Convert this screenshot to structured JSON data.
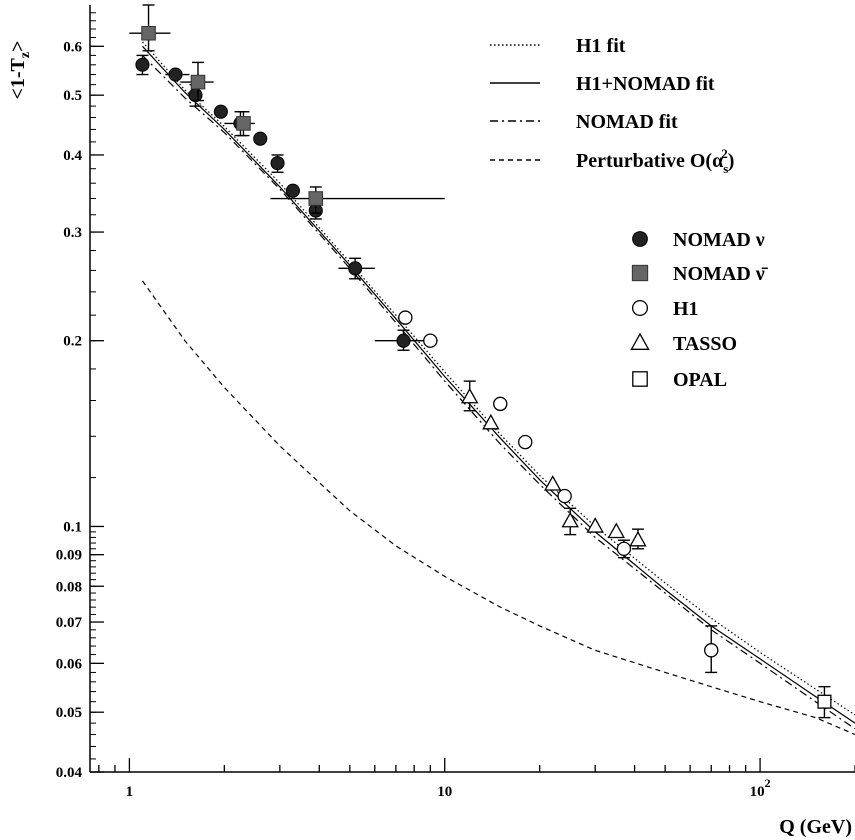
{
  "chart_data": {
    "type": "scatter",
    "xscale": "log",
    "yscale": "log",
    "xlim": [
      0.75,
      200
    ],
    "ylim": [
      0.04,
      0.7
    ],
    "xlabel": "Q (GeV)",
    "ylabel": "<1-T_z>",
    "x_tick_labels": [
      "1",
      "10",
      "10^2"
    ],
    "y_tick_labels": [
      "0.04",
      "0.05",
      "0.06",
      "0.07",
      "0.08",
      "0.09",
      "0.1",
      "0.2",
      "0.3",
      "0.4",
      "0.5",
      "0.6"
    ],
    "grid": false,
    "legend_position": "top-right",
    "curves": [
      {
        "name": "H1 fit",
        "style": "dotted",
        "points": [
          [
            1.1,
            0.61
          ],
          [
            1.5,
            0.51
          ],
          [
            2,
            0.445
          ],
          [
            3,
            0.36
          ],
          [
            5,
            0.268
          ],
          [
            7,
            0.22
          ],
          [
            10,
            0.178
          ],
          [
            15,
            0.141
          ],
          [
            20,
            0.121
          ],
          [
            30,
            0.1
          ],
          [
            50,
            0.081
          ],
          [
            70,
            0.071
          ],
          [
            100,
            0.0625
          ],
          [
            150,
            0.0545
          ],
          [
            200,
            0.0495
          ]
        ]
      },
      {
        "name": "H1+NOMAD fit",
        "style": "solid",
        "points": [
          [
            1.1,
            0.6
          ],
          [
            1.5,
            0.505
          ],
          [
            2,
            0.44
          ],
          [
            3,
            0.355
          ],
          [
            5,
            0.265
          ],
          [
            7,
            0.217
          ],
          [
            10,
            0.175
          ],
          [
            15,
            0.139
          ],
          [
            20,
            0.119
          ],
          [
            30,
            0.098
          ],
          [
            50,
            0.079
          ],
          [
            70,
            0.069
          ],
          [
            100,
            0.061
          ],
          [
            150,
            0.053
          ],
          [
            200,
            0.048
          ]
        ]
      },
      {
        "name": "NOMAD fit",
        "style": "dashdot",
        "points": [
          [
            1.1,
            0.58
          ],
          [
            1.5,
            0.495
          ],
          [
            2,
            0.435
          ],
          [
            3,
            0.352
          ],
          [
            5,
            0.262
          ],
          [
            7,
            0.214
          ],
          [
            10,
            0.172
          ],
          [
            15,
            0.136
          ],
          [
            20,
            0.117
          ],
          [
            30,
            0.096
          ],
          [
            50,
            0.078
          ],
          [
            70,
            0.068
          ],
          [
            100,
            0.06
          ],
          [
            150,
            0.052
          ],
          [
            200,
            0.047
          ]
        ]
      },
      {
        "name": "Perturbative O(α_s^2)",
        "style": "dashed",
        "points": [
          [
            1.1,
            0.25
          ],
          [
            1.5,
            0.2
          ],
          [
            2,
            0.168
          ],
          [
            3,
            0.135
          ],
          [
            5,
            0.106
          ],
          [
            7,
            0.093
          ],
          [
            10,
            0.083
          ],
          [
            15,
            0.074
          ],
          [
            20,
            0.069
          ],
          [
            30,
            0.063
          ],
          [
            50,
            0.058
          ],
          [
            70,
            0.055
          ],
          [
            100,
            0.052
          ],
          [
            150,
            0.049
          ],
          [
            200,
            0.046
          ]
        ]
      }
    ],
    "series": [
      {
        "name": "NOMAD ν",
        "marker": "filled-circle",
        "points": [
          {
            "x": 1.1,
            "y": 0.56,
            "yerr": [
              0.54,
              0.58
            ]
          },
          {
            "x": 1.4,
            "y": 0.54,
            "xerr": [
              1.3,
              1.55
            ]
          },
          {
            "x": 1.62,
            "y": 0.5,
            "yerr": [
              0.48,
              0.52
            ]
          },
          {
            "x": 1.95,
            "y": 0.47
          },
          {
            "x": 2.25,
            "y": 0.45,
            "xerr": [
              2.0,
              2.5
            ],
            "yerr": [
              0.43,
              0.47
            ]
          },
          {
            "x": 2.6,
            "y": 0.425
          },
          {
            "x": 2.95,
            "y": 0.388,
            "yerr": [
              0.375,
              0.4
            ]
          },
          {
            "x": 3.3,
            "y": 0.35
          },
          {
            "x": 3.9,
            "y": 0.325,
            "yerr": [
              0.315,
              0.335
            ]
          },
          {
            "x": 5.2,
            "y": 0.262,
            "xerr": [
              4.6,
              6.0
            ],
            "yerr": [
              0.252,
              0.272
            ]
          },
          {
            "x": 7.4,
            "y": 0.2,
            "xerr": [
              6.0,
              9.5
            ],
            "yerr": [
              0.193,
              0.208
            ]
          }
        ]
      },
      {
        "name": "NOMAD ν̄",
        "marker": "filled-square",
        "points": [
          {
            "x": 1.15,
            "y": 0.63,
            "xerr": [
              1.0,
              1.35
            ],
            "yerr": [
              0.59,
              0.7
            ]
          },
          {
            "x": 1.65,
            "y": 0.525,
            "xerr": [
              1.45,
              1.85
            ],
            "yerr": [
              0.49,
              0.565
            ]
          },
          {
            "x": 2.3,
            "y": 0.45,
            "yerr": [
              0.43,
              0.47
            ]
          },
          {
            "x": 3.9,
            "y": 0.34,
            "xerr": [
              2.8,
              10.0
            ],
            "yerr": [
              0.322,
              0.355
            ]
          }
        ]
      },
      {
        "name": "H1",
        "marker": "open-circle",
        "points": [
          {
            "x": 7.5,
            "y": 0.218
          },
          {
            "x": 9.0,
            "y": 0.2
          },
          {
            "x": 15.0,
            "y": 0.158
          },
          {
            "x": 18.0,
            "y": 0.137
          },
          {
            "x": 24.0,
            "y": 0.112
          },
          {
            "x": 37.0,
            "y": 0.092,
            "yerr": [
              0.089,
              0.095
            ]
          },
          {
            "x": 70.0,
            "y": 0.063,
            "yerr": [
              0.058,
              0.069
            ]
          }
        ]
      },
      {
        "name": "TASSO",
        "marker": "open-triangle",
        "points": [
          {
            "x": 12.0,
            "y": 0.162,
            "yerr": [
              0.154,
              0.172
            ]
          },
          {
            "x": 14.0,
            "y": 0.147
          },
          {
            "x": 22.0,
            "y": 0.117
          },
          {
            "x": 25.0,
            "y": 0.102,
            "yerr": [
              0.097,
              0.107
            ]
          },
          {
            "x": 30.0,
            "y": 0.1
          },
          {
            "x": 35.0,
            "y": 0.098
          },
          {
            "x": 41.0,
            "y": 0.095,
            "yerr": [
              0.092,
              0.099
            ]
          }
        ]
      },
      {
        "name": "OPAL",
        "marker": "open-square",
        "points": [
          {
            "x": 160.0,
            "y": 0.052,
            "yerr": [
              0.049,
              0.055
            ]
          }
        ]
      }
    ]
  }
}
